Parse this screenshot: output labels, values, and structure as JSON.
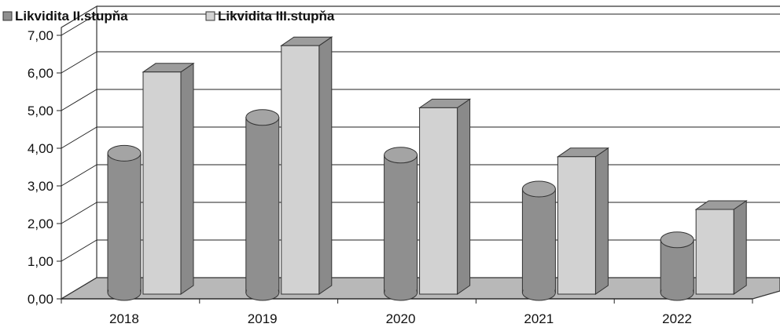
{
  "chart_data": {
    "type": "bar",
    "style": "3d-column",
    "categories": [
      "2018",
      "2019",
      "2020",
      "2021",
      "2022"
    ],
    "series": [
      {
        "name": "Likvidita II.stupňa",
        "shape": "cylinder",
        "color": "#8f8f8f",
        "values": [
          3.7,
          4.65,
          3.65,
          2.75,
          1.4
        ]
      },
      {
        "name": "Likvidita III.stupňa",
        "shape": "box",
        "color": "#d2d2d2",
        "values": [
          5.9,
          6.6,
          4.95,
          3.65,
          2.25
        ]
      }
    ],
    "y_ticks": [
      "0,00",
      "1,00",
      "2,00",
      "3,00",
      "4,00",
      "5,00",
      "6,00",
      "7,00"
    ],
    "ylim": [
      0,
      7
    ],
    "grid": true,
    "legend_position": "top-left",
    "title": "",
    "xlabel": "",
    "ylabel": ""
  }
}
